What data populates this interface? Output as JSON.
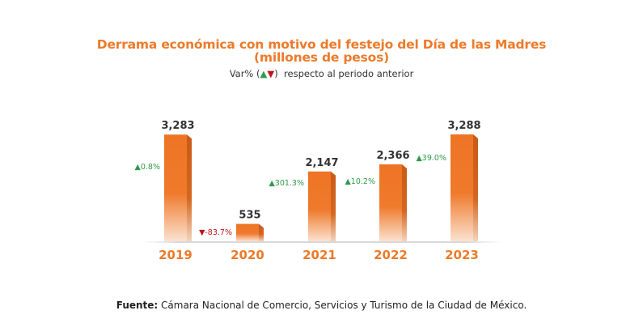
{
  "chart_data": {
    "type": "bar",
    "title": "Derrama económica con motivo del festejo del Día de las Madres",
    "title_line2": "(millones de pesos)",
    "subtitle": {
      "prefix": "Var% (",
      "up_symbol": "▲",
      "down_symbol": "▼",
      "suffix": ")  respecto al periodo anterior"
    },
    "categories": [
      "2019",
      "2020",
      "2021",
      "2022",
      "2023"
    ],
    "values": [
      3283,
      535,
      2147,
      2366,
      3288
    ],
    "value_labels": [
      "3,283",
      "535",
      "2,147",
      "2,366",
      "3,288"
    ],
    "variation": [
      {
        "direction": "up",
        "label": "0.8%"
      },
      {
        "direction": "down",
        "label": "-83.7%"
      },
      {
        "direction": "up",
        "label": "301.3%"
      },
      {
        "direction": "up",
        "label": "10.2%"
      },
      {
        "direction": "up",
        "label": "39.0%"
      }
    ],
    "xlabel": "",
    "ylabel": "",
    "ylim": [
      0,
      3800
    ],
    "grid": false,
    "legend": "none",
    "colors": {
      "bar": "#ee7424",
      "bar_side": "#c95a17",
      "category_label": "#ed7a2a",
      "value_label": "#333333",
      "up": "#2f9a4a",
      "down": "#c0141c"
    }
  },
  "source": {
    "label": "Fuente:",
    "text": " Cámara Nacional de Comercio, Servicios y Turismo de la Ciudad de México."
  }
}
